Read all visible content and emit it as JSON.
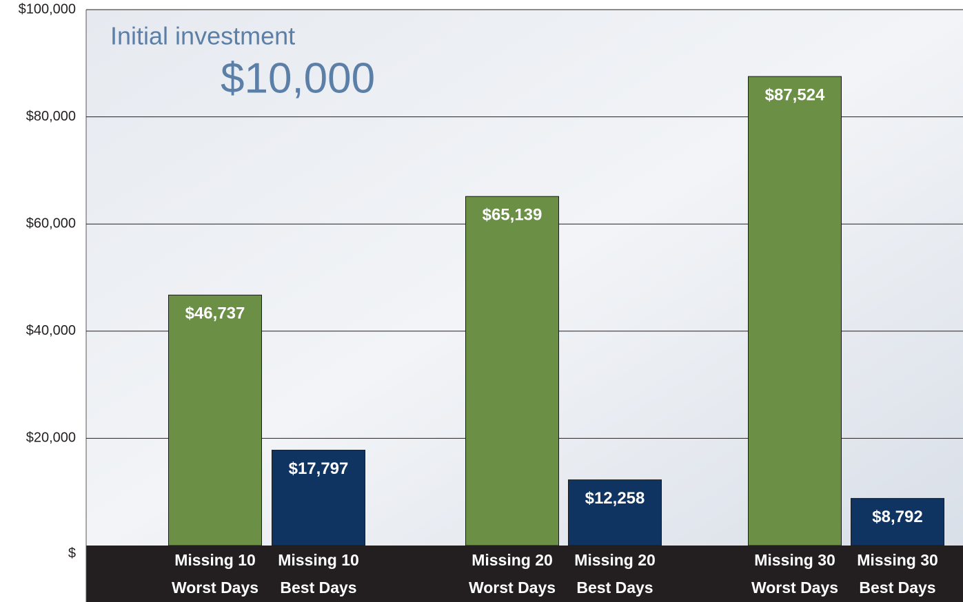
{
  "chart_data": {
    "type": "bar",
    "annotations": [
      "Initial investment",
      "$10,000"
    ],
    "categories": [
      [
        "Missing 10",
        "Worst Days"
      ],
      [
        "Missing 10",
        "Best Days"
      ],
      [
        "Missing 20",
        "Worst Days"
      ],
      [
        "Missing 20",
        "Best Days"
      ],
      [
        "Missing 30",
        "Worst Days"
      ],
      [
        "Missing 30",
        "Best Days"
      ]
    ],
    "values": [
      46737,
      17797,
      65139,
      12258,
      87524,
      8792
    ],
    "value_labels": [
      "$46,737",
      "$17,797",
      "$65,139",
      "$12,258",
      "$87,524",
      "$8,792"
    ],
    "colors": [
      "#6a8f45",
      "#0f3461",
      "#6a8f45",
      "#0f3461",
      "#6a8f45",
      "#0f3461"
    ],
    "ylim": [
      0,
      100000
    ],
    "yticks": [
      {
        "value": 0,
        "label": "$"
      },
      {
        "value": 20000,
        "label": "$20,000"
      },
      {
        "value": 40000,
        "label": "$40,000"
      },
      {
        "value": 60000,
        "label": "$60,000"
      },
      {
        "value": 80000,
        "label": "$80,000"
      },
      {
        "value": 100000,
        "label": "$100,000"
      }
    ],
    "grid": true
  }
}
